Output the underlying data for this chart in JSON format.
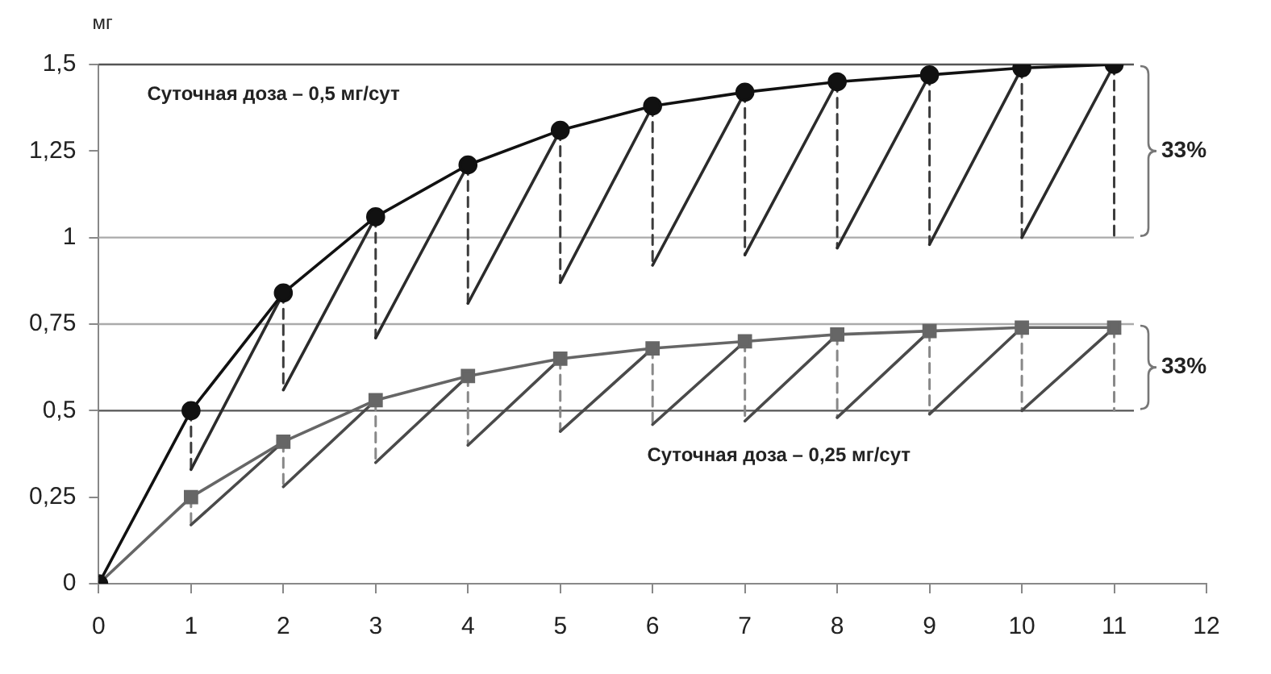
{
  "chart_data": {
    "type": "line",
    "ylabel": "мг",
    "xlim": [
      0,
      12
    ],
    "xticks": [
      0,
      1,
      2,
      3,
      4,
      5,
      6,
      7,
      8,
      9,
      10,
      11,
      12
    ],
    "ylim": [
      0,
      1.5
    ],
    "yticks": [
      0,
      {
        "value": 0.25,
        "label": "0,25"
      },
      {
        "value": 0.5,
        "label": "0,5"
      },
      {
        "value": 0.75,
        "label": "0,75"
      },
      1,
      {
        "value": 1.25,
        "label": "1,25"
      },
      {
        "value": 1.5,
        "label": "1,5"
      }
    ],
    "grid": false,
    "legend": false,
    "ref_lines": [
      {
        "axis": "y",
        "value": 0.5,
        "color": "#555555"
      },
      {
        "axis": "y",
        "value": 0.75,
        "color": "#aaaaaa"
      },
      {
        "axis": "y",
        "value": 1,
        "color": "#aaaaaa"
      },
      {
        "axis": "y",
        "value": 1.5,
        "color": "#555555"
      }
    ],
    "series": [
      {
        "color": "#111111",
        "marker": "circle",
        "x": [
          0,
          1,
          2,
          3,
          4,
          5,
          6,
          7,
          8,
          9,
          10,
          11
        ],
        "values": [
          0,
          0.5,
          0.84,
          1.06,
          1.21,
          1.31,
          1.38,
          1.42,
          1.45,
          1.47,
          1.49,
          1.5
        ]
      },
      {
        "color": "#666666",
        "marker": "square",
        "x": [
          0,
          1,
          2,
          3,
          4,
          5,
          6,
          7,
          8,
          9,
          10,
          11
        ],
        "values": [
          0,
          0.25,
          0.41,
          0.53,
          0.6,
          0.65,
          0.68,
          0.7,
          0.72,
          0.73,
          0.74,
          0.74
        ]
      },
      {
        "color": "#2b2b2b",
        "x": [
          1,
          2
        ],
        "values": [
          0.33,
          0.84
        ]
      },
      {
        "color": "#2b2b2b",
        "x": [
          2,
          3
        ],
        "values": [
          0.56,
          1.06
        ]
      },
      {
        "color": "#2b2b2b",
        "x": [
          3,
          4
        ],
        "values": [
          0.71,
          1.21
        ]
      },
      {
        "color": "#2b2b2b",
        "x": [
          4,
          5
        ],
        "values": [
          0.81,
          1.31
        ]
      },
      {
        "color": "#2b2b2b",
        "x": [
          5,
          6
        ],
        "values": [
          0.87,
          1.38
        ]
      },
      {
        "color": "#2b2b2b",
        "x": [
          6,
          7
        ],
        "values": [
          0.92,
          1.42
        ]
      },
      {
        "color": "#2b2b2b",
        "x": [
          7,
          8
        ],
        "values": [
          0.95,
          1.45
        ]
      },
      {
        "color": "#2b2b2b",
        "x": [
          8,
          9
        ],
        "values": [
          0.97,
          1.47
        ]
      },
      {
        "color": "#2b2b2b",
        "x": [
          9,
          10
        ],
        "values": [
          0.98,
          1.49
        ]
      },
      {
        "color": "#2b2b2b",
        "x": [
          10,
          11
        ],
        "values": [
          1.0,
          1.5
        ]
      },
      {
        "color": "#3c3c3c",
        "line_style": "dashed",
        "x": [
          1,
          1
        ],
        "values": [
          0.5,
          0.33
        ]
      },
      {
        "color": "#3c3c3c",
        "line_style": "dashed",
        "x": [
          2,
          2
        ],
        "values": [
          0.84,
          0.56
        ]
      },
      {
        "color": "#3c3c3c",
        "line_style": "dashed",
        "x": [
          3,
          3
        ],
        "values": [
          1.06,
          0.71
        ]
      },
      {
        "color": "#3c3c3c",
        "line_style": "dashed",
        "x": [
          4,
          4
        ],
        "values": [
          1.21,
          0.81
        ]
      },
      {
        "color": "#3c3c3c",
        "line_style": "dashed",
        "x": [
          5,
          5
        ],
        "values": [
          1.31,
          0.87
        ]
      },
      {
        "color": "#3c3c3c",
        "line_style": "dashed",
        "x": [
          6,
          6
        ],
        "values": [
          1.38,
          0.92
        ]
      },
      {
        "color": "#3c3c3c",
        "line_style": "dashed",
        "x": [
          7,
          7
        ],
        "values": [
          1.42,
          0.95
        ]
      },
      {
        "color": "#3c3c3c",
        "line_style": "dashed",
        "x": [
          8,
          8
        ],
        "values": [
          1.45,
          0.97
        ]
      },
      {
        "color": "#3c3c3c",
        "line_style": "dashed",
        "x": [
          9,
          9
        ],
        "values": [
          1.47,
          0.98
        ]
      },
      {
        "color": "#3c3c3c",
        "line_style": "dashed",
        "x": [
          10,
          10
        ],
        "values": [
          1.49,
          1.0
        ]
      },
      {
        "color": "#3c3c3c",
        "line_style": "dashed",
        "x": [
          11,
          11
        ],
        "values": [
          1.5,
          1.0
        ]
      },
      {
        "color": "#4a4a4a",
        "x": [
          1,
          2
        ],
        "values": [
          0.17,
          0.41
        ]
      },
      {
        "color": "#4a4a4a",
        "x": [
          2,
          3
        ],
        "values": [
          0.28,
          0.53
        ]
      },
      {
        "color": "#4a4a4a",
        "x": [
          3,
          4
        ],
        "values": [
          0.35,
          0.6
        ]
      },
      {
        "color": "#4a4a4a",
        "x": [
          4,
          5
        ],
        "values": [
          0.4,
          0.65
        ]
      },
      {
        "color": "#4a4a4a",
        "x": [
          5,
          6
        ],
        "values": [
          0.44,
          0.68
        ]
      },
      {
        "color": "#4a4a4a",
        "x": [
          6,
          7
        ],
        "values": [
          0.46,
          0.7
        ]
      },
      {
        "color": "#4a4a4a",
        "x": [
          7,
          8
        ],
        "values": [
          0.47,
          0.72
        ]
      },
      {
        "color": "#4a4a4a",
        "x": [
          8,
          9
        ],
        "values": [
          0.48,
          0.73
        ]
      },
      {
        "color": "#4a4a4a",
        "x": [
          9,
          10
        ],
        "values": [
          0.49,
          0.74
        ]
      },
      {
        "color": "#4a4a4a",
        "x": [
          10,
          11
        ],
        "values": [
          0.5,
          0.74
        ]
      },
      {
        "color": "#888888",
        "line_style": "dashed",
        "x": [
          1,
          1
        ],
        "values": [
          0.25,
          0.17
        ]
      },
      {
        "color": "#888888",
        "line_style": "dashed",
        "x": [
          2,
          2
        ],
        "values": [
          0.41,
          0.28
        ]
      },
      {
        "color": "#888888",
        "line_style": "dashed",
        "x": [
          3,
          3
        ],
        "values": [
          0.53,
          0.35
        ]
      },
      {
        "color": "#888888",
        "line_style": "dashed",
        "x": [
          4,
          4
        ],
        "values": [
          0.6,
          0.4
        ]
      },
      {
        "color": "#888888",
        "line_style": "dashed",
        "x": [
          5,
          5
        ],
        "values": [
          0.65,
          0.44
        ]
      },
      {
        "color": "#888888",
        "line_style": "dashed",
        "x": [
          6,
          6
        ],
        "values": [
          0.68,
          0.46
        ]
      },
      {
        "color": "#888888",
        "line_style": "dashed",
        "x": [
          7,
          7
        ],
        "values": [
          0.7,
          0.47
        ]
      },
      {
        "color": "#888888",
        "line_style": "dashed",
        "x": [
          8,
          8
        ],
        "values": [
          0.72,
          0.48
        ]
      },
      {
        "color": "#888888",
        "line_style": "dashed",
        "x": [
          9,
          9
        ],
        "values": [
          0.73,
          0.49
        ]
      },
      {
        "color": "#888888",
        "line_style": "dashed",
        "x": [
          10,
          10
        ],
        "values": [
          0.74,
          0.5
        ]
      },
      {
        "color": "#888888",
        "line_style": "dashed",
        "x": [
          11,
          11
        ],
        "values": [
          0.74,
          0.5
        ]
      }
    ],
    "annotations": [
      "Суточная доза – 0,5 мг/сут",
      "Суточная доза – 0,25 мг/сут",
      "33%",
      "33%"
    ]
  }
}
